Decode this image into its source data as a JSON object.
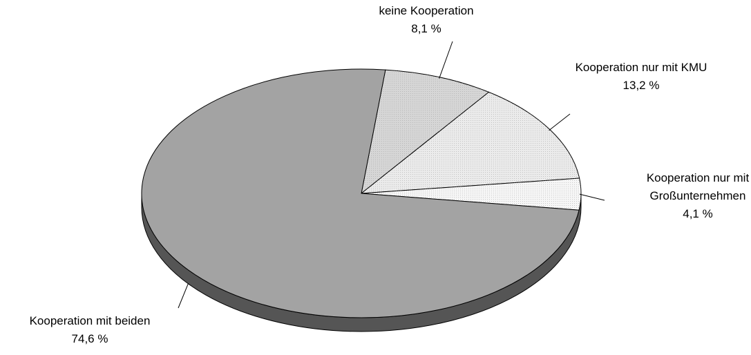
{
  "chart_data": {
    "type": "pie",
    "categories": [
      "keine Kooperation",
      "Kooperation nur mit KMU",
      "Kooperation nur mit Großunternehmen",
      "Kooperation mit beiden"
    ],
    "values": [
      8.1,
      13.2,
      4.1,
      74.6
    ],
    "value_labels": [
      "8,1 %",
      "13,2 %",
      "4,1 %",
      "74,6 %"
    ],
    "colors": [
      "#d6d6d6",
      "#ebebeb",
      "#f6f6f6",
      "#a3a3a3"
    ]
  }
}
